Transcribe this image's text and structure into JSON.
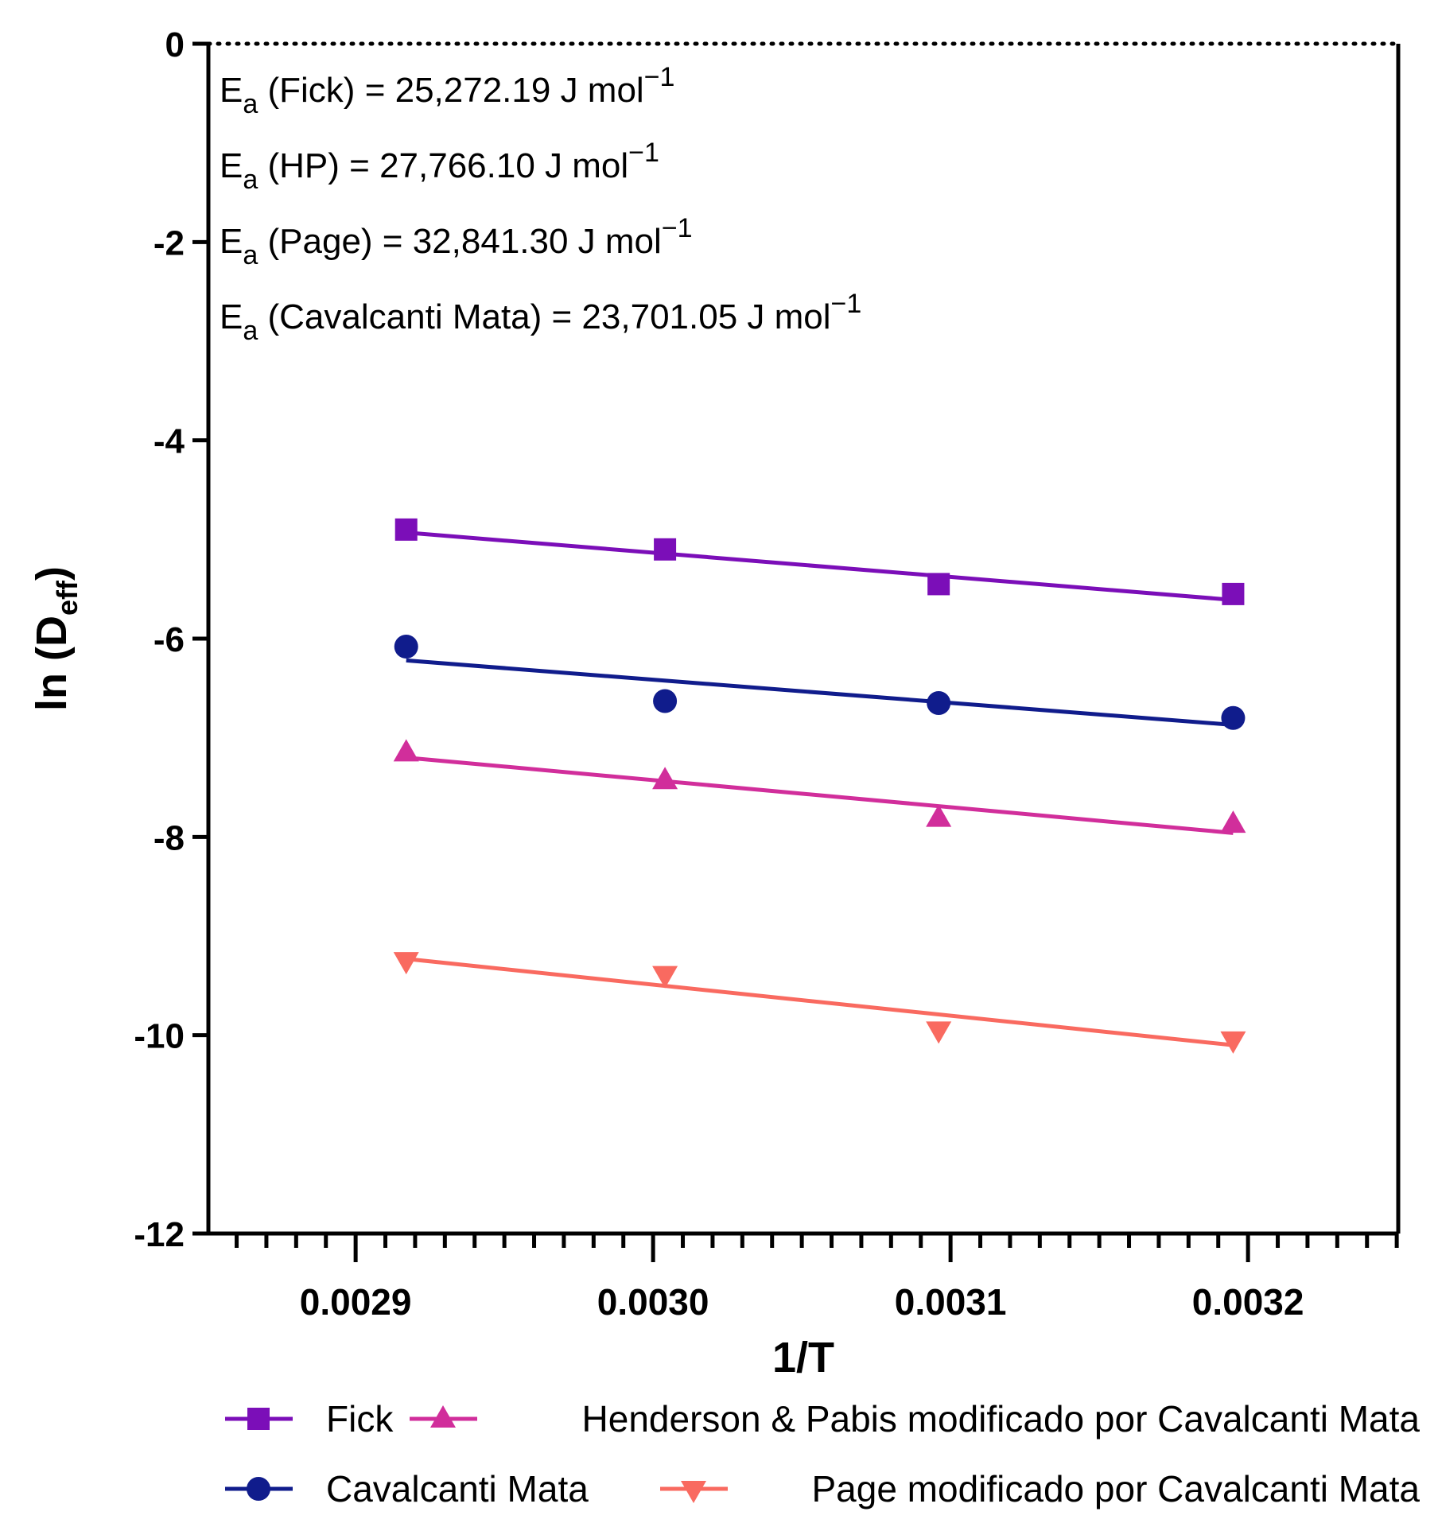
{
  "chart_data": {
    "type": "scatter",
    "title": "",
    "xlabel": "1/T",
    "ylabel_main": "ln (D",
    "ylabel_sub": "eff",
    "ylabel_close": ")",
    "xlim": [
      0.0028505,
      0.0032505
    ],
    "ylim": [
      -12,
      0
    ],
    "x_ticks": [
      {
        "value": 0.0029,
        "label": "0.0029"
      },
      {
        "value": 0.003,
        "label": "0.0030"
      },
      {
        "value": 0.0031,
        "label": "0.0031"
      },
      {
        "value": 0.0032,
        "label": "0.0032"
      }
    ],
    "x_minor_step": 1e-05,
    "y_ticks": [
      {
        "value": 0,
        "label": "0"
      },
      {
        "value": -2,
        "label": "-2"
      },
      {
        "value": -4,
        "label": "-4"
      },
      {
        "value": -6,
        "label": "-6"
      },
      {
        "value": -8,
        "label": "-8"
      },
      {
        "value": -10,
        "label": "-10"
      },
      {
        "value": -12,
        "label": "-12"
      }
    ],
    "x": [
      0.002917,
      0.003004,
      0.003096,
      0.003195
    ],
    "series": [
      {
        "name": "Fick",
        "marker": "square",
        "color": "#7B0EB8",
        "values": [
          -4.9,
          -5.1,
          -5.45,
          -5.55
        ],
        "fit": [
          -4.93,
          -5.61
        ]
      },
      {
        "name": "Cavalcanti Mata",
        "marker": "circle",
        "color": "#101C8C",
        "values": [
          -6.08,
          -6.63,
          -6.65,
          -6.8
        ],
        "fit": [
          -6.22,
          -6.87
        ]
      },
      {
        "name": "Henderson & Pabis modificado por Cavalcanti Mata",
        "marker": "triangle-up",
        "color": "#D12E9B",
        "values": [
          -7.15,
          -7.43,
          -7.81,
          -7.87
        ],
        "fit": [
          -7.2,
          -7.96
        ]
      },
      {
        "name": "Page modificado por Cavalcanti Mata",
        "marker": "triangle-down",
        "color": "#F96A60",
        "values": [
          -9.25,
          -9.39,
          -9.95,
          -10.05
        ],
        "fit": [
          -9.23,
          -10.1
        ]
      }
    ],
    "annotations": [
      {
        "prefix": "E",
        "sub": "a",
        "text": " (Fick) = 25,272.19 J mol",
        "sup": "−1"
      },
      {
        "prefix": "E",
        "sub": "a",
        "text": " (HP) = 27,766.10 J  mol",
        "sup": "−1"
      },
      {
        "prefix": "E",
        "sub": "a",
        "text": " (Page) = 32,841.30 J mol",
        "sup": "−1"
      },
      {
        "prefix": "E",
        "sub": "a",
        "text": " (Cavalcanti Mata) = 23,701.05 J mol",
        "sup": "−1"
      }
    ]
  }
}
